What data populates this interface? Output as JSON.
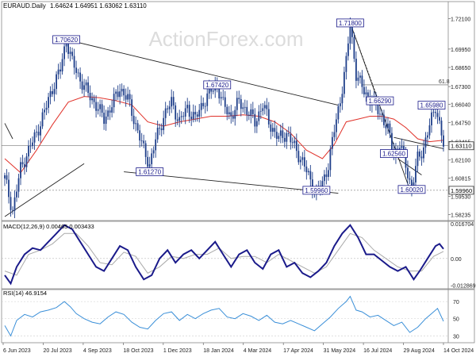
{
  "chart_data": {
    "type": "candlestick",
    "symbol_line": {
      "title": "EURAUD.Daily",
      "ohlc": "1.64624 1.64951 1.63062 1.63110"
    },
    "watermark": "ActionForex.com",
    "colors": {
      "candles": "#1f3f8a",
      "ma": "#e0322a",
      "trendlines": "#222222",
      "hline": "#555555",
      "macd": "#1a1a8a",
      "signal": "#aaaaaa",
      "rsi": "#3a8fd8",
      "label_border": "#1a1a8a",
      "label_text": "#1a1a8a"
    },
    "price_axis": {
      "ylim": [
        1.5782,
        1.7331
      ],
      "ticks": [
        "1.72100",
        "1.69950",
        "1.68650",
        "1.67300",
        "1.66040",
        "1.64750",
        "1.63415",
        "1.62100",
        "1.60815",
        "1.59530",
        "1.58235"
      ],
      "tick_values": [
        1.721,
        1.6995,
        1.6865,
        1.673,
        1.6604,
        1.6475,
        1.63415,
        1.621,
        1.60815,
        1.5953,
        1.58235
      ]
    },
    "x_axis_labels": [
      "6 Jun 2023",
      "20 Jul 2023",
      "4 Sep 2023",
      "18 Oct 2023",
      "1 Dec 2023",
      "18 Jan 2024",
      "4 Mar 2024",
      "17 Apr 2024",
      "31 May 2024",
      "16 Jul 2024",
      "29 Aug 2024",
      "14 Oct 2024"
    ],
    "price_series_close": [
      [
        0,
        1.608
      ],
      [
        4,
        1.585
      ],
      [
        8,
        1.615
      ],
      [
        12,
        1.628
      ],
      [
        16,
        1.64
      ],
      [
        20,
        1.655
      ],
      [
        24,
        1.672
      ],
      [
        28,
        1.685
      ],
      [
        31,
        1.7062
      ],
      [
        34,
        1.69
      ],
      [
        38,
        1.678
      ],
      [
        42,
        1.668
      ],
      [
        46,
        1.66
      ],
      [
        50,
        1.65
      ],
      [
        54,
        1.66
      ],
      [
        58,
        1.672
      ],
      [
        62,
        1.664
      ],
      [
        66,
        1.646
      ],
      [
        70,
        1.628
      ],
      [
        73,
        1.618
      ],
      [
        76,
        1.635
      ],
      [
        80,
        1.652
      ],
      [
        84,
        1.662
      ],
      [
        88,
        1.648
      ],
      [
        92,
        1.658
      ],
      [
        96,
        1.65
      ],
      [
        100,
        1.662
      ],
      [
        104,
        1.67
      ],
      [
        107,
        1.6742
      ],
      [
        110,
        1.66
      ],
      [
        114,
        1.652
      ],
      [
        118,
        1.662
      ],
      [
        122,
        1.656
      ],
      [
        126,
        1.648
      ],
      [
        130,
        1.66
      ],
      [
        134,
        1.645
      ],
      [
        138,
        1.636
      ],
      [
        142,
        1.64
      ],
      [
        146,
        1.63
      ],
      [
        150,
        1.62
      ],
      [
        154,
        1.606
      ],
      [
        157,
        1.598
      ],
      [
        160,
        1.604
      ],
      [
        163,
        1.618
      ],
      [
        166,
        1.642
      ],
      [
        169,
        1.664
      ],
      [
        172,
        1.69
      ],
      [
        174,
        1.718
      ],
      [
        177,
        1.682
      ],
      [
        180,
        1.672
      ],
      [
        184,
        1.664
      ],
      [
        187,
        1.659
      ],
      [
        190,
        1.652
      ],
      [
        193,
        1.642
      ],
      [
        196,
        1.6256
      ],
      [
        199,
        1.632
      ],
      [
        202,
        1.618
      ],
      [
        205,
        1.6002
      ],
      [
        208,
        1.622
      ],
      [
        211,
        1.63
      ],
      [
        214,
        1.645
      ],
      [
        217,
        1.6598
      ],
      [
        219,
        1.646
      ],
      [
        221,
        1.6311
      ]
    ],
    "ma_series": [
      [
        0,
        1.622
      ],
      [
        8,
        1.612
      ],
      [
        16,
        1.628
      ],
      [
        24,
        1.646
      ],
      [
        32,
        1.662
      ],
      [
        40,
        1.666
      ],
      [
        48,
        1.665
      ],
      [
        56,
        1.663
      ],
      [
        64,
        1.66
      ],
      [
        72,
        1.648
      ],
      [
        80,
        1.645
      ],
      [
        88,
        1.648
      ],
      [
        96,
        1.65
      ],
      [
        104,
        1.652
      ],
      [
        112,
        1.652
      ],
      [
        120,
        1.653
      ],
      [
        128,
        1.652
      ],
      [
        136,
        1.648
      ],
      [
        144,
        1.64
      ],
      [
        152,
        1.628
      ],
      [
        160,
        1.622
      ],
      [
        166,
        1.632
      ],
      [
        172,
        1.648
      ],
      [
        178,
        1.65
      ],
      [
        184,
        1.652
      ],
      [
        190,
        1.652
      ],
      [
        196,
        1.65
      ],
      [
        202,
        1.644
      ],
      [
        208,
        1.636
      ],
      [
        214,
        1.634
      ],
      [
        221,
        1.635
      ]
    ],
    "bar_count": 222,
    "price_labels": [
      {
        "text": "1.70620",
        "bar": 31,
        "value": 1.7062
      },
      {
        "text": "1.71800",
        "bar": 174,
        "value": 1.718
      },
      {
        "text": "1.67420",
        "bar": 107,
        "value": 1.6742
      },
      {
        "text": "1.61270",
        "bar": 73,
        "value": 1.6127
      },
      {
        "text": "1.59960",
        "bar": 157,
        "value": 1.5996
      },
      {
        "text": "1.66290",
        "bar": 189,
        "value": 1.6629
      },
      {
        "text": "1.65980",
        "bar": 215,
        "value": 1.6598
      },
      {
        "text": "1.62560",
        "bar": 196,
        "value": 1.6256
      },
      {
        "text": "1.60020",
        "bar": 205,
        "value": 1.6002
      }
    ],
    "axis_price_labels": [
      {
        "text": "1.63110",
        "value": 1.6311
      },
      {
        "text": "1.59960",
        "value": 1.5996
      }
    ],
    "fib_label": "61.8",
    "fib_value": 1.6742,
    "fib_start_bar": 180,
    "trendlines": [
      {
        "from": [
          31,
          1.7062
        ],
        "to": [
          168,
          1.6598
        ]
      },
      {
        "from": [
          60,
          1.6127
        ],
        "to": [
          168,
          1.5975
        ]
      },
      {
        "from": [
          0,
          1.581
        ],
        "to": [
          40,
          1.6185
        ]
      },
      {
        "from": [
          0,
          1.647
        ],
        "to": [
          4,
          1.636
        ]
      },
      {
        "from": [
          174,
          1.718
        ],
        "to": [
          204,
          1.6002
        ]
      },
      {
        "from": [
          196,
          1.637
        ],
        "to": [
          221,
          1.629
        ]
      },
      {
        "from": [
          198,
          1.622
        ],
        "to": [
          210,
          1.6105
        ]
      }
    ],
    "macd": {
      "title": "MACD(12,26,9) 0.00465 0.003433",
      "ylim": [
        -0.0145,
        0.0178
      ],
      "ticks": [
        "0.016704",
        "0.00",
        "-0.012869"
      ],
      "tick_values": [
        0.016704,
        0.0,
        -0.012869
      ],
      "macd_series": [
        [
          0,
          -0.008
        ],
        [
          3,
          -0.012
        ],
        [
          6,
          -0.004
        ],
        [
          10,
          0.002
        ],
        [
          14,
          0.005
        ],
        [
          18,
          0.004
        ],
        [
          22,
          0.008
        ],
        [
          26,
          0.012
        ],
        [
          30,
          0.016
        ],
        [
          34,
          0.014
        ],
        [
          38,
          0.008
        ],
        [
          42,
          0.002
        ],
        [
          46,
          -0.004
        ],
        [
          50,
          -0.006
        ],
        [
          54,
          0.0
        ],
        [
          58,
          0.006
        ],
        [
          62,
          0.004
        ],
        [
          66,
          -0.004
        ],
        [
          70,
          -0.01
        ],
        [
          74,
          -0.008
        ],
        [
          78,
          0.0
        ],
        [
          82,
          0.004
        ],
        [
          86,
          -0.002
        ],
        [
          90,
          0.002
        ],
        [
          94,
          0.004
        ],
        [
          98,
          0.0
        ],
        [
          102,
          0.004
        ],
        [
          106,
          0.008
        ],
        [
          110,
          0.002
        ],
        [
          114,
          -0.004
        ],
        [
          118,
          0.002
        ],
        [
          122,
          0.004
        ],
        [
          126,
          -0.002
        ],
        [
          130,
          -0.005
        ],
        [
          134,
          0.002
        ],
        [
          138,
          0.004
        ],
        [
          142,
          -0.004
        ],
        [
          146,
          -0.002
        ],
        [
          150,
          -0.007
        ],
        [
          154,
          -0.009
        ],
        [
          158,
          -0.006
        ],
        [
          162,
          -0.002
        ],
        [
          166,
          0.006
        ],
        [
          170,
          0.012
        ],
        [
          174,
          0.016
        ],
        [
          178,
          0.01
        ],
        [
          182,
          0.002
        ],
        [
          186,
          0.002
        ],
        [
          190,
          -0.001
        ],
        [
          194,
          -0.004
        ],
        [
          198,
          -0.006
        ],
        [
          202,
          -0.004
        ],
        [
          206,
          -0.01
        ],
        [
          209,
          -0.006
        ],
        [
          213,
          0.0
        ],
        [
          217,
          0.006
        ],
        [
          219,
          0.007
        ],
        [
          221,
          0.0046
        ]
      ],
      "signal_series": [
        [
          0,
          -0.006
        ],
        [
          6,
          -0.008
        ],
        [
          12,
          0.002
        ],
        [
          18,
          0.004
        ],
        [
          24,
          0.007
        ],
        [
          30,
          0.012
        ],
        [
          36,
          0.012
        ],
        [
          42,
          0.006
        ],
        [
          48,
          -0.002
        ],
        [
          54,
          -0.003
        ],
        [
          60,
          0.003
        ],
        [
          66,
          0.001
        ],
        [
          72,
          -0.007
        ],
        [
          78,
          -0.004
        ],
        [
          84,
          0.001
        ],
        [
          90,
          0.0
        ],
        [
          96,
          0.002
        ],
        [
          102,
          0.002
        ],
        [
          108,
          0.005
        ],
        [
          114,
          0.0
        ],
        [
          120,
          0.001
        ],
        [
          126,
          0.001
        ],
        [
          132,
          -0.002
        ],
        [
          138,
          0.002
        ],
        [
          144,
          -0.001
        ],
        [
          150,
          -0.004
        ],
        [
          156,
          -0.007
        ],
        [
          162,
          -0.004
        ],
        [
          168,
          0.004
        ],
        [
          174,
          0.012
        ],
        [
          180,
          0.01
        ],
        [
          186,
          0.004
        ],
        [
          192,
          0.0
        ],
        [
          198,
          -0.004
        ],
        [
          204,
          -0.006
        ],
        [
          210,
          -0.006
        ],
        [
          216,
          0.001
        ],
        [
          221,
          0.0034
        ]
      ]
    },
    "rsi": {
      "title": "RSI(14) 46.9154",
      "ylim": [
        22,
        84
      ],
      "ticks": [
        "70",
        "50",
        "30"
      ],
      "tick_values": [
        70,
        50,
        30
      ],
      "series": [
        [
          0,
          42
        ],
        [
          3,
          30
        ],
        [
          6,
          48
        ],
        [
          10,
          55
        ],
        [
          14,
          52
        ],
        [
          18,
          58
        ],
        [
          22,
          60
        ],
        [
          26,
          63
        ],
        [
          30,
          70
        ],
        [
          33,
          64
        ],
        [
          36,
          56
        ],
        [
          40,
          50
        ],
        [
          44,
          46
        ],
        [
          48,
          44
        ],
        [
          52,
          52
        ],
        [
          56,
          58
        ],
        [
          60,
          55
        ],
        [
          64,
          46
        ],
        [
          68,
          40
        ],
        [
          72,
          38
        ],
        [
          76,
          48
        ],
        [
          80,
          56
        ],
        [
          84,
          58
        ],
        [
          88,
          48
        ],
        [
          92,
          55
        ],
        [
          96,
          50
        ],
        [
          100,
          56
        ],
        [
          104,
          60
        ],
        [
          108,
          62
        ],
        [
          112,
          52
        ],
        [
          116,
          50
        ],
        [
          120,
          56
        ],
        [
          124,
          53
        ],
        [
          128,
          48
        ],
        [
          132,
          54
        ],
        [
          136,
          46
        ],
        [
          140,
          44
        ],
        [
          144,
          48
        ],
        [
          148,
          44
        ],
        [
          152,
          40
        ],
        [
          156,
          36
        ],
        [
          160,
          44
        ],
        [
          164,
          52
        ],
        [
          168,
          62
        ],
        [
          172,
          70
        ],
        [
          174,
          76
        ],
        [
          177,
          60
        ],
        [
          180,
          58
        ],
        [
          184,
          52
        ],
        [
          188,
          54
        ],
        [
          192,
          48
        ],
        [
          196,
          42
        ],
        [
          200,
          46
        ],
        [
          204,
          34
        ],
        [
          208,
          40
        ],
        [
          212,
          50
        ],
        [
          216,
          58
        ],
        [
          218,
          62
        ],
        [
          221,
          47
        ]
      ]
    }
  }
}
